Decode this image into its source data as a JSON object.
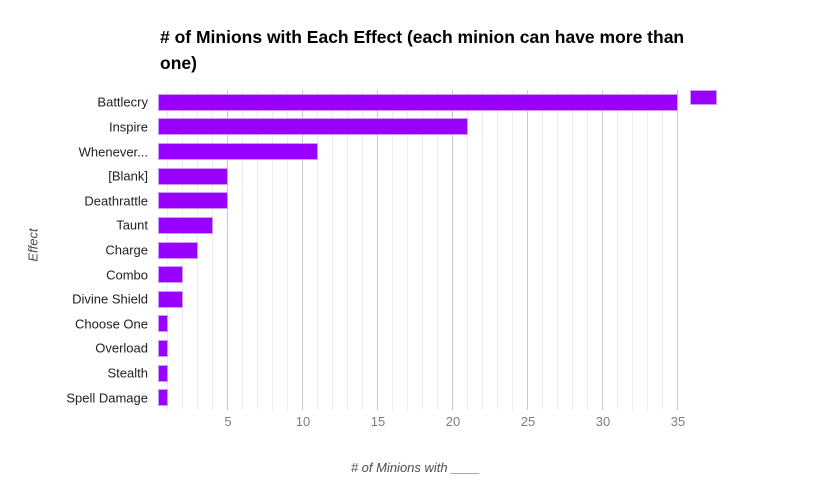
{
  "chart_data": {
    "type": "bar",
    "orientation": "horizontal",
    "title": "# of Minions with Each Effect (each minion can have more than one)",
    "xlabel": "# of Minions with ____",
    "ylabel": "Effect",
    "categories": [
      "Battlecry",
      "Inspire",
      "Whenever...",
      "[Blank]",
      "Deathrattle",
      "Taunt",
      "Charge",
      "Combo",
      "Divine Shield",
      "Choose One",
      "Overload",
      "Stealth",
      "Spell Damage"
    ],
    "values": [
      35,
      21,
      11,
      5,
      5,
      4,
      3,
      2,
      2,
      1,
      1,
      1,
      1
    ],
    "xlim": [
      0,
      35
    ],
    "xticks": [
      5,
      10,
      15,
      20,
      25,
      30,
      35
    ],
    "grid": {
      "minor_step": 1,
      "major_step": 5,
      "minor_color": "#ececec",
      "major_color": "#c9c9c9"
    },
    "bar_color": "#9900ff",
    "bar_stroke_color": "#cc99ff",
    "legend": {
      "position": "top-right",
      "label": "",
      "swatch_color": "#9900ff"
    },
    "background_color": "#ffffff"
  }
}
